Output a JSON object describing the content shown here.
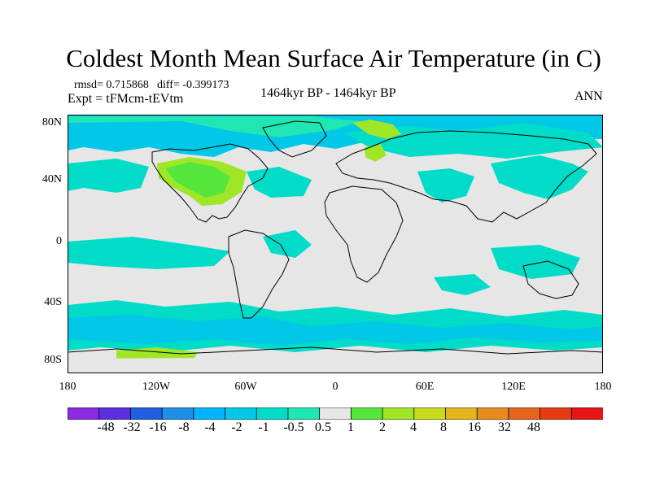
{
  "title": "Coldest Month Mean Surface Air Temperature (in C)",
  "stats": {
    "rmsd": "rmsd= 0.715868",
    "diff": "diff= -0.399173"
  },
  "expt": "Expt = tFMcm-tEVtm",
  "period": "1464kyr BP - 1464kyr BP",
  "season": "ANN",
  "lat_labels": [
    "80N",
    "40N",
    "0",
    "40S",
    "80S"
  ],
  "lon_labels": [
    "180",
    "120W",
    "60W",
    "0",
    "60E",
    "120E",
    "180"
  ],
  "colorbar": {
    "labels": [
      "-48",
      "-32",
      "-16",
      "-8",
      "-4",
      "-2",
      "-1",
      "-0.5",
      "0.5",
      "1",
      "2",
      "4",
      "8",
      "16",
      "32",
      "48"
    ],
    "colors": [
      "#8a2be2",
      "#5b2fe0",
      "#1f5fe0",
      "#1e90e6",
      "#00b4ff",
      "#00c8e6",
      "#00dcc8",
      "#20e6b4",
      "#e6e6e6",
      "#55e63c",
      "#a0e628",
      "#c8dc1e",
      "#e6b41e",
      "#e68c1e",
      "#e6641e",
      "#e63c14",
      "#e61414"
    ]
  },
  "map_colors": {
    "background": "#e6e6e6",
    "neg1": "#00dcc8",
    "neg2": "#00c8e6",
    "neg3": "#00b4ff",
    "pos1": "#55e63c",
    "pos2": "#a0e628"
  }
}
